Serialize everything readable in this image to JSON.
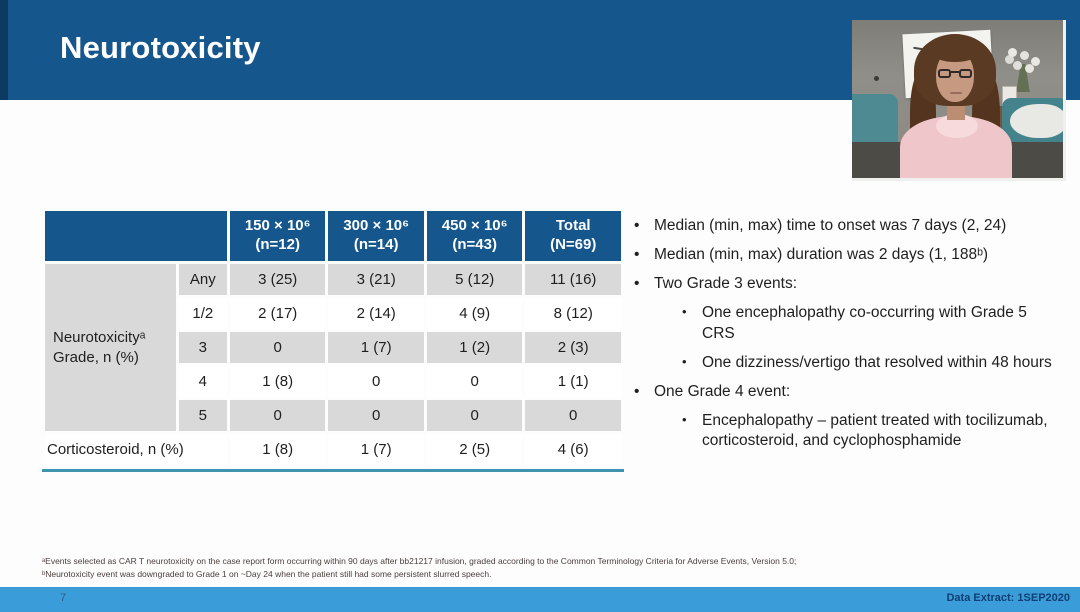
{
  "slide": {
    "title": "Neurotoxicity",
    "page_number": "7",
    "data_extract_label": "Data Extract: 1SEP2020"
  },
  "table": {
    "columns": [
      {
        "dose": "150 × 10⁶",
        "n": "(n=12)"
      },
      {
        "dose": "300 × 10⁶",
        "n": "(n=14)"
      },
      {
        "dose": "450 × 10⁶",
        "n": "(n=43)"
      },
      {
        "dose": "Total",
        "n": "(N=69)"
      }
    ],
    "row_group": {
      "line1": "Neurotoxicityᵃ",
      "line2": "Grade, n (%)"
    },
    "grades": [
      {
        "label": "Any",
        "values": [
          "3 (25)",
          "3 (21)",
          "5 (12)",
          "11 (16)"
        ]
      },
      {
        "label": "1/2",
        "values": [
          "2 (17)",
          "2 (14)",
          "4 (9)",
          "8 (12)"
        ]
      },
      {
        "label": "3",
        "values": [
          "0",
          "1 (7)",
          "1 (2)",
          "2 (3)"
        ]
      },
      {
        "label": "4",
        "values": [
          "1 (8)",
          "0",
          "0",
          "1 (1)"
        ]
      },
      {
        "label": "5",
        "values": [
          "0",
          "0",
          "0",
          "0"
        ]
      }
    ],
    "corticosteroid": {
      "label": "Corticosteroid, n (%)",
      "values": [
        "1 (8)",
        "1 (7)",
        "2 (5)",
        "4 (6)"
      ]
    }
  },
  "bullets": [
    {
      "level": 1,
      "text": "Median (min, max) time to onset was 7 days (2, 24)"
    },
    {
      "level": 1,
      "text": "Median (min, max) duration was 2 days (1, 188ᵇ)"
    },
    {
      "level": 1,
      "text": "Two Grade 3 events:"
    },
    {
      "level": 2,
      "text": "One encephalopathy co-occurring with Grade 5 CRS"
    },
    {
      "level": 2,
      "text": "One dizziness/vertigo that resolved within 48 hours"
    },
    {
      "level": 1,
      "text": "One Grade 4 event:"
    },
    {
      "level": 2,
      "text": "Encephalopathy – patient treated with tocilizumab, corticosteroid, and cyclophosphamide"
    }
  ],
  "footnotes": [
    "ᵃEvents selected as CAR T neurotoxicity on the case report form occurring within 90 days after bb21217 infusion, graded according to the Common Terminology Criteria for Adverse Events, Version 5.0;",
    "ᵇNeurotoxicity event was downgraded to Grade 1 on ~Day 24 when the patient still had some persistent slurred speech."
  ],
  "colors": {
    "banner_blue": "#15568D",
    "footer_blue": "#3A9CD9",
    "cell_gray": "#D9D9D9",
    "rule_teal": "#3E93AE"
  }
}
